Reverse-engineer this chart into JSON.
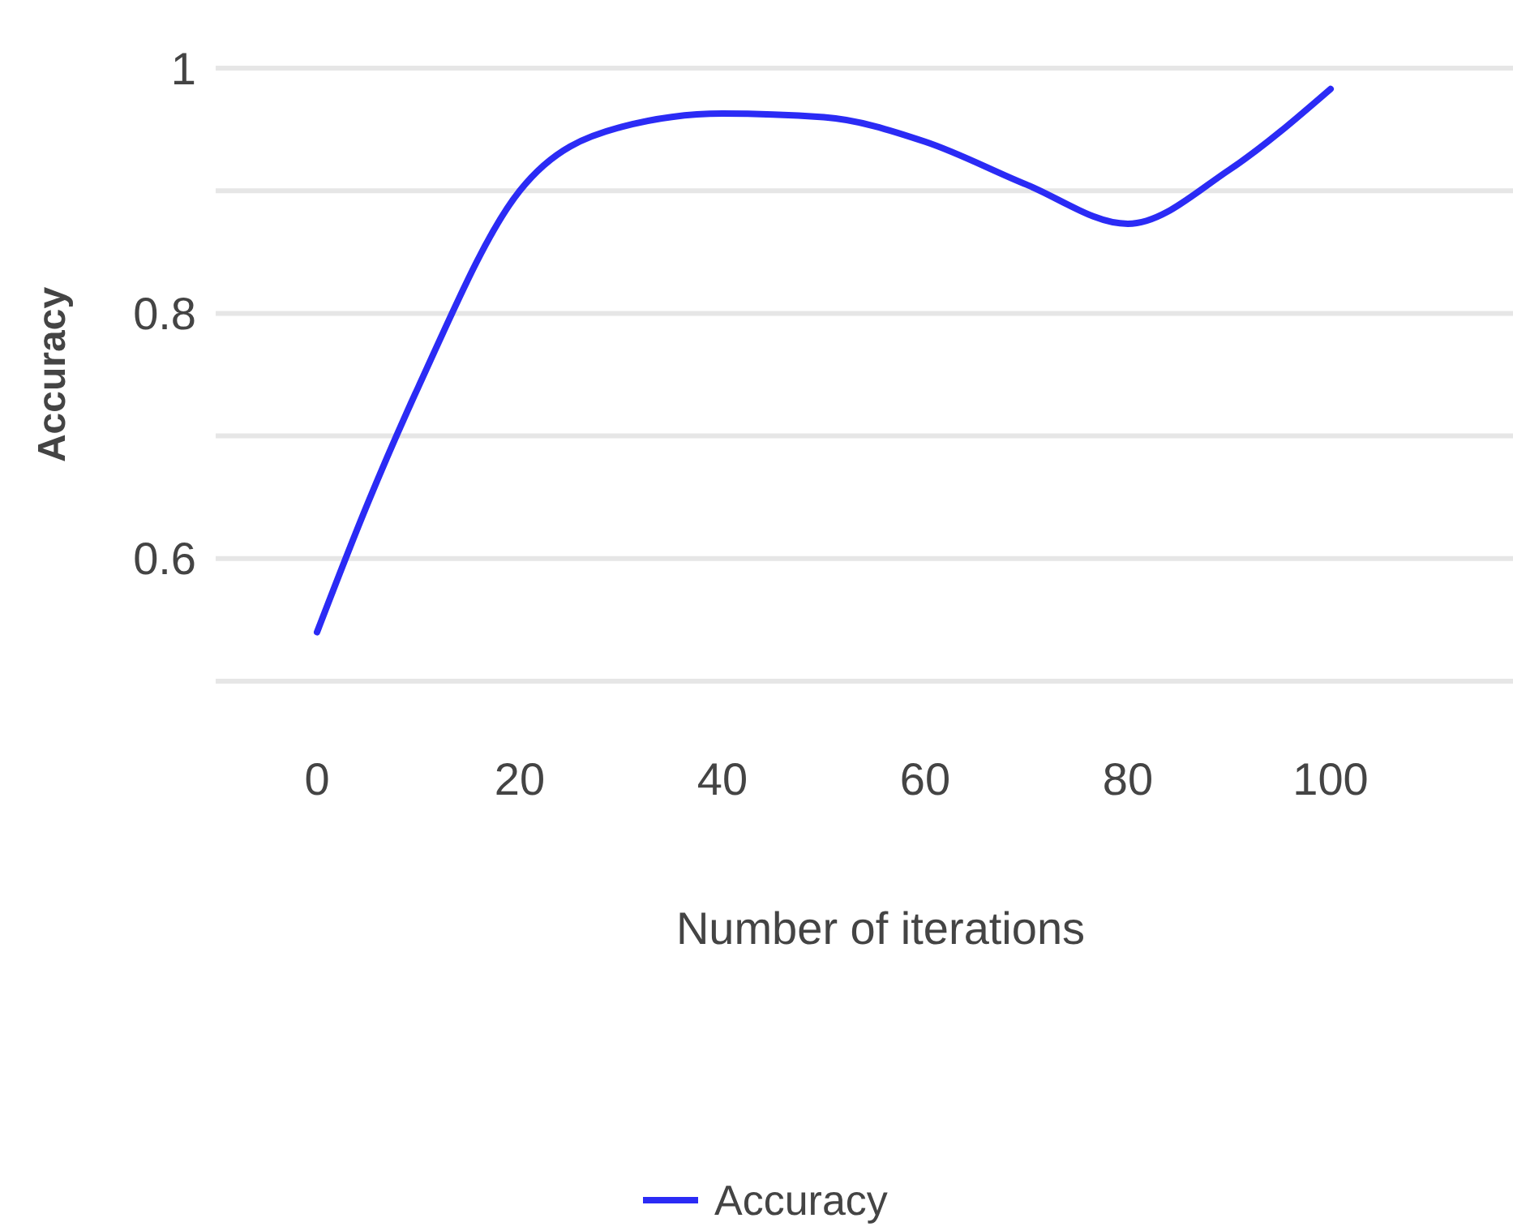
{
  "chart_data": {
    "type": "line",
    "xlabel": "Number of iterations",
    "ylabel": "Accuracy",
    "x": [
      0,
      5,
      10,
      20,
      30,
      40,
      50,
      60,
      70,
      80,
      90,
      100
    ],
    "series": [
      {
        "name": "Accuracy",
        "color": "#2b2bf5",
        "values": [
          0.54,
          0.645,
          0.74,
          0.9,
          0.952,
          0.963,
          0.96,
          0.94,
          0.905,
          0.873,
          0.917,
          0.983
        ]
      }
    ],
    "xlim": [
      -10,
      118
    ],
    "xticks": [
      0,
      20,
      40,
      60,
      80,
      100
    ],
    "ylim": [
      0.5,
      1
    ],
    "yticks": [
      {
        "value": 0.5,
        "label": null
      },
      0.6,
      {
        "value": 0.7,
        "label": null
      },
      0.8,
      {
        "value": 0.9,
        "label": null
      },
      1
    ],
    "grid": "y",
    "legend": "bottom",
    "marker": "none",
    "line_style": "solid"
  }
}
